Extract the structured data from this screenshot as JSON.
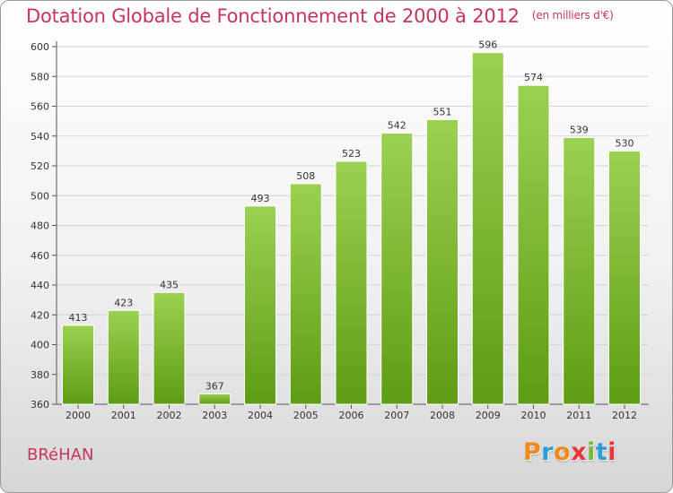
{
  "header": {
    "title": "Dotation Globale de Fonctionnement de 2000 à 2012",
    "unit": "(en milliers d'€)"
  },
  "footer": {
    "commune": "BRéHAN",
    "logo": "Proxiti"
  },
  "colors": {
    "accent": "#c8345a",
    "bar_top": "#9bd152",
    "bar_bottom": "#5e9c14",
    "logo_letters": [
      "#f08a1c",
      "#2e9bd6",
      "#f08a1c",
      "#e8343b",
      "#7ab53c",
      "#2e9bd6",
      "#e8343b"
    ]
  },
  "chart_data": {
    "type": "bar",
    "title": "Dotation Globale de Fonctionnement de 2000 à 2012",
    "subtitle": "(en milliers d'€)",
    "xlabel": "",
    "ylabel": "",
    "categories": [
      "2000",
      "2001",
      "2002",
      "2003",
      "2004",
      "2005",
      "2006",
      "2007",
      "2008",
      "2009",
      "2010",
      "2011",
      "2012"
    ],
    "values": [
      413,
      423,
      435,
      367,
      493,
      508,
      523,
      542,
      551,
      596,
      574,
      539,
      530
    ],
    "ylim": [
      360,
      600
    ],
    "yticks": [
      360,
      380,
      400,
      420,
      440,
      460,
      480,
      500,
      520,
      540,
      560,
      580,
      600
    ],
    "grid": true
  }
}
